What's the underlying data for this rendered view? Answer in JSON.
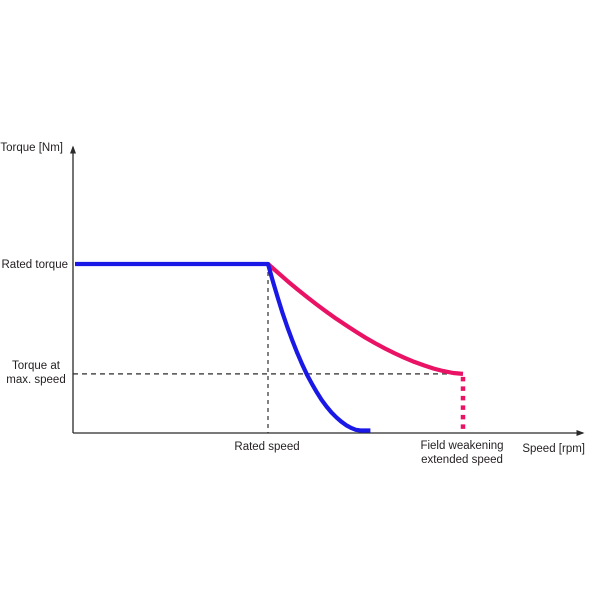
{
  "chart_data": {
    "type": "line",
    "title": "",
    "xlabel": "Speed [rpm]",
    "ylabel": "Torque [Nm]",
    "grid": false,
    "legend": false,
    "axis_tick_labels": "none (qualitative diagram)",
    "xlim": [
      0,
      2.65
    ],
    "ylim": [
      0,
      1.73
    ],
    "x_units": "multiples of rated speed",
    "y_units": "fraction of rated torque",
    "series": [
      {
        "name": "blue-curve",
        "color": "#1a18e6",
        "points": [
          [
            0.01,
            1.0
          ],
          [
            1.0,
            1.0
          ],
          [
            1.025,
            0.897
          ],
          [
            1.05,
            0.8
          ],
          [
            1.075,
            0.709
          ],
          [
            1.1,
            0.624
          ],
          [
            1.125,
            0.546
          ],
          [
            1.15,
            0.473
          ],
          [
            1.175,
            0.407
          ],
          [
            1.2,
            0.345
          ],
          [
            1.225,
            0.291
          ],
          [
            1.25,
            0.241
          ],
          [
            1.275,
            0.196
          ],
          [
            1.3,
            0.157
          ],
          [
            1.325,
            0.122
          ],
          [
            1.35,
            0.093
          ],
          [
            1.375,
            0.068
          ],
          [
            1.4,
            0.047
          ],
          [
            1.425,
            0.031
          ],
          [
            1.45,
            0.019
          ],
          [
            1.475,
            0.015
          ],
          [
            1.5,
            0.015
          ],
          [
            1.525,
            0.015
          ]
        ]
      },
      {
        "name": "pink-curve",
        "color": "#e91265",
        "points": [
          [
            1.0,
            1.0
          ],
          [
            1.05,
            0.949
          ],
          [
            1.1,
            0.899
          ],
          [
            1.15,
            0.851
          ],
          [
            1.2,
            0.805
          ],
          [
            1.25,
            0.76
          ],
          [
            1.3,
            0.717
          ],
          [
            1.35,
            0.676
          ],
          [
            1.4,
            0.637
          ],
          [
            1.45,
            0.6
          ],
          [
            1.5,
            0.564
          ],
          [
            1.55,
            0.531
          ],
          [
            1.6,
            0.5
          ],
          [
            1.65,
            0.471
          ],
          [
            1.7,
            0.445
          ],
          [
            1.75,
            0.421
          ],
          [
            1.8,
            0.4
          ],
          [
            1.85,
            0.381
          ],
          [
            1.9,
            0.366
          ],
          [
            1.95,
            0.355
          ],
          [
            2.0,
            0.35
          ]
        ]
      }
    ],
    "reference_lines": {
      "rated_torque_level": 1.0,
      "torque_at_max_speed_level": 0.35,
      "rated_speed_x": 1.0,
      "field_weakening_extended_speed_x": 2.0
    },
    "annotations": {
      "rated_torque": "Rated torque",
      "torque_at_max_speed_line1": "Torque at",
      "torque_at_max_speed_line2": "max. speed",
      "rated_speed": "Rated speed",
      "extended_speed_line1": "Field weakening",
      "extended_speed_line2": "extended speed"
    },
    "colors": {
      "blue_curve": "#1a18e6",
      "pink_curve": "#e91265",
      "axis": "#2a2a2a",
      "dashed_reference": "#4d4d4d",
      "text": "#231f20",
      "background": "#ffffff"
    }
  }
}
